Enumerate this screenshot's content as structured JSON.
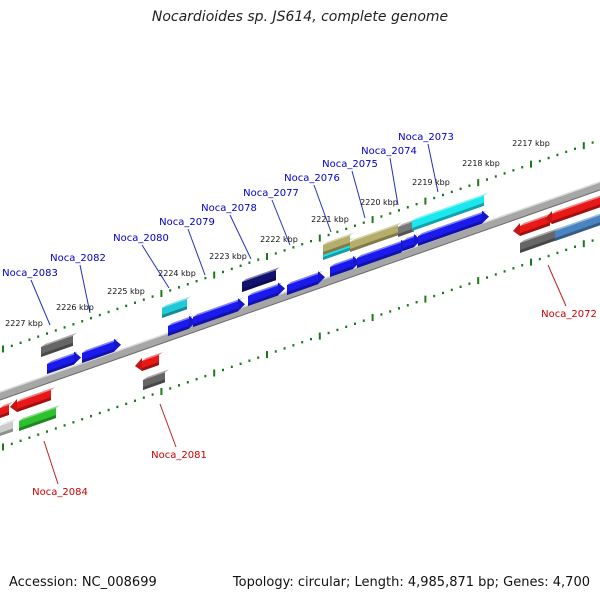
{
  "title": "Nocardioides sp. JS614, complete genome",
  "footer": {
    "accession": "Accession: NC_008699",
    "summary": "Topology: circular; Length: 4,985,871 bp; Genes: 4,700"
  },
  "colors": {
    "forward_label": "#0000cc",
    "reverse_label": "#cc0000",
    "backbone": "#888888",
    "ticks": "#1a7a1a"
  },
  "kbp_labels": [
    "2217 kbp",
    "2218 kbp",
    "2219 kbp",
    "2220 kbp",
    "2221 kbp",
    "2222 kbp",
    "2223 kbp",
    "2224 kbp",
    "2225 kbp",
    "2226 kbp",
    "2227 kbp"
  ],
  "genes_forward": [
    {
      "name": "Noca_2073"
    },
    {
      "name": "Noca_2074"
    },
    {
      "name": "Noca_2075"
    },
    {
      "name": "Noca_2076"
    },
    {
      "name": "Noca_2077"
    },
    {
      "name": "Noca_2078"
    },
    {
      "name": "Noca_2079"
    },
    {
      "name": "Noca_2080"
    },
    {
      "name": "Noca_2082"
    },
    {
      "name": "Noca_2083"
    }
  ],
  "genes_reverse": [
    {
      "name": "Noca_2072"
    },
    {
      "name": "Noca_2081"
    },
    {
      "name": "Noca_2084"
    }
  ]
}
